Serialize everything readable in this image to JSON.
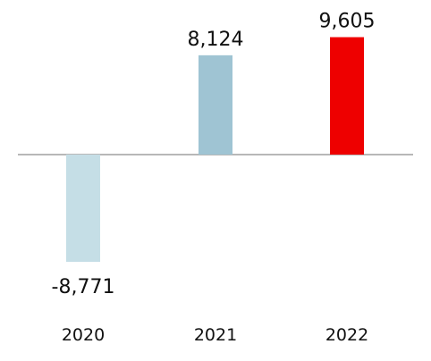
{
  "chart_data": {
    "type": "bar",
    "title": "",
    "xlabel": "",
    "ylabel": "",
    "categories": [
      "2020",
      "2021",
      "2022"
    ],
    "values": [
      -8771,
      8124,
      9605
    ],
    "value_labels": [
      "-8,771",
      "8,124",
      "9,605"
    ],
    "bar_colors": [
      "#c5dee6",
      "#9fc4d3",
      "#ee0000"
    ],
    "baseline_color": "#b8b8b8",
    "ylim": [
      -8771,
      9605
    ],
    "grid": false,
    "legend": "none"
  }
}
